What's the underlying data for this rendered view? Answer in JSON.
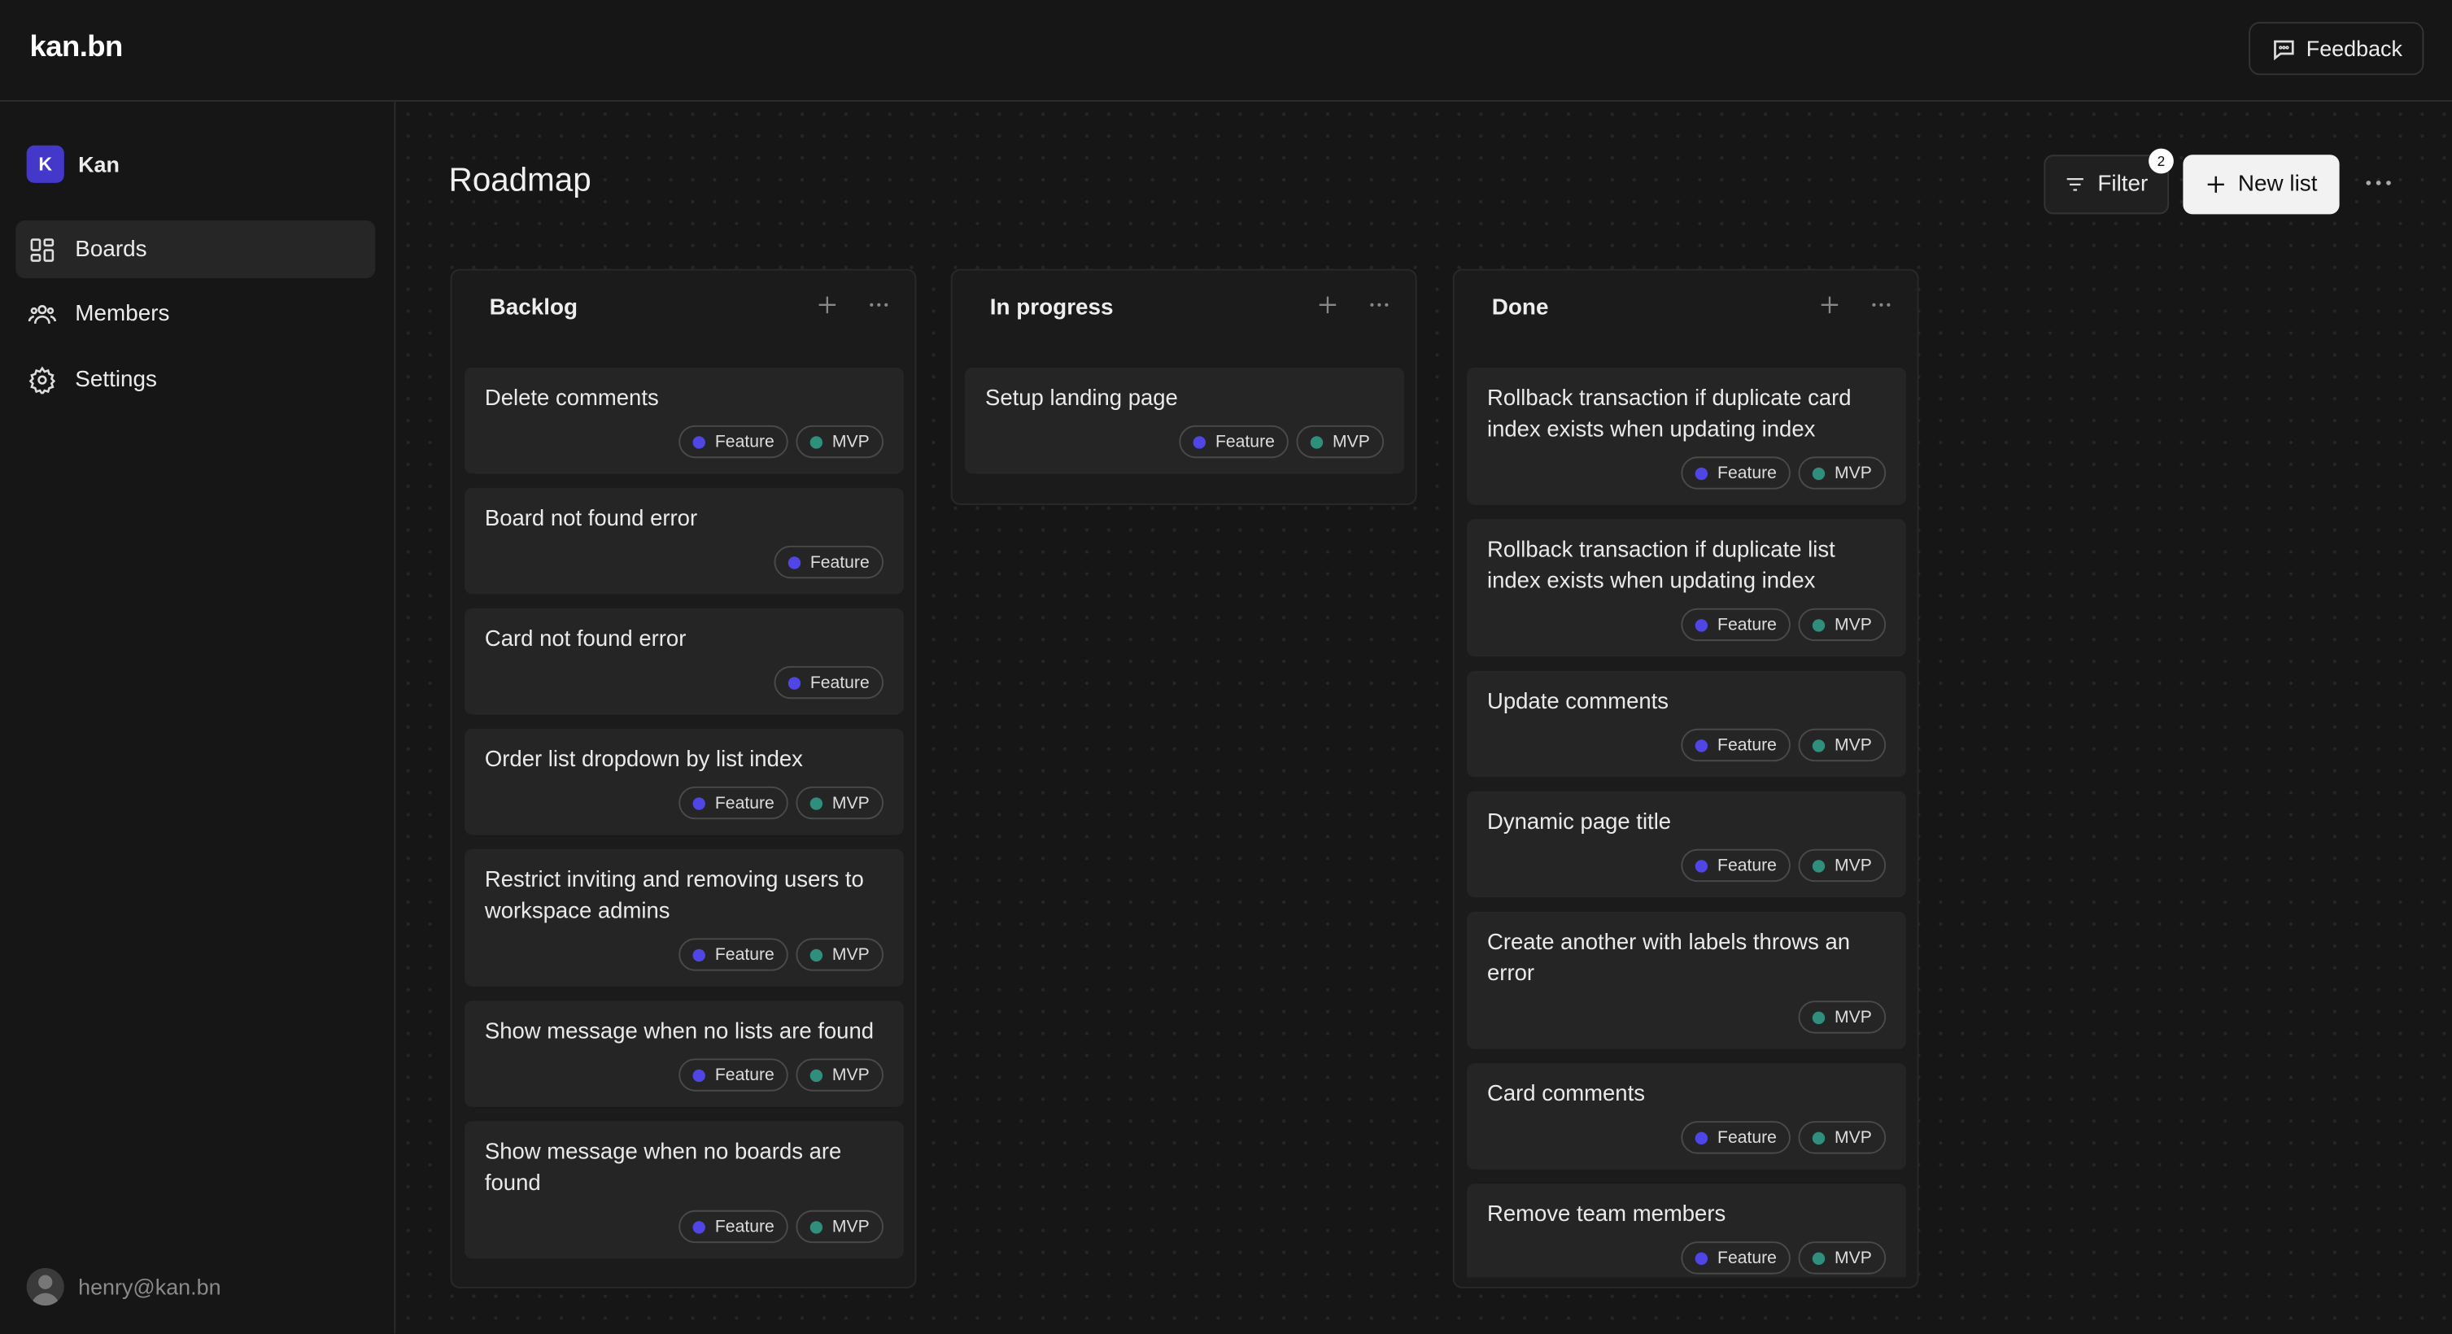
{
  "header": {
    "logo": "kan.bn",
    "feedback": "Feedback"
  },
  "sidebar": {
    "workspace": {
      "initial": "K",
      "name": "Kan"
    },
    "nav": [
      "Boards",
      "Members",
      "Settings"
    ],
    "user": "henry@kan.bn"
  },
  "board": {
    "title": "Roadmap",
    "filter": "Filter",
    "filter_count": "2",
    "new_list": "New list",
    "lists": [
      {
        "name": "Backlog",
        "cards": [
          {
            "title": "Delete comments",
            "labels": [
              {
                "text": "Feature",
                "color": "#4f46e5"
              },
              {
                "text": "MVP",
                "color": "#2f8f7c"
              }
            ]
          },
          {
            "title": "Board not found error",
            "labels": [
              {
                "text": "Feature",
                "color": "#4f46e5"
              }
            ]
          },
          {
            "title": "Card not found error",
            "labels": [
              {
                "text": "Feature",
                "color": "#4f46e5"
              }
            ]
          },
          {
            "title": "Order list dropdown by list index",
            "labels": [
              {
                "text": "Feature",
                "color": "#4f46e5"
              },
              {
                "text": "MVP",
                "color": "#2f8f7c"
              }
            ]
          },
          {
            "title": "Restrict inviting and removing users to workspace admins",
            "labels": [
              {
                "text": "Feature",
                "color": "#4f46e5"
              },
              {
                "text": "MVP",
                "color": "#2f8f7c"
              }
            ]
          },
          {
            "title": "Show message when no lists are found",
            "labels": [
              {
                "text": "Feature",
                "color": "#4f46e5"
              },
              {
                "text": "MVP",
                "color": "#2f8f7c"
              }
            ]
          },
          {
            "title": "Show message when no boards are found",
            "labels": [
              {
                "text": "Feature",
                "color": "#4f46e5"
              },
              {
                "text": "MVP",
                "color": "#2f8f7c"
              }
            ]
          }
        ]
      },
      {
        "name": "In progress",
        "cards": [
          {
            "title": "Setup landing page",
            "labels": [
              {
                "text": "Feature",
                "color": "#4f46e5"
              },
              {
                "text": "MVP",
                "color": "#2f8f7c"
              }
            ]
          }
        ]
      },
      {
        "name": "Done",
        "cards": [
          {
            "title": "Rollback transaction if duplicate card index exists when updating index",
            "labels": [
              {
                "text": "Feature",
                "color": "#4f46e5"
              },
              {
                "text": "MVP",
                "color": "#2f8f7c"
              }
            ]
          },
          {
            "title": "Rollback transaction if duplicate list index exists when updating index",
            "labels": [
              {
                "text": "Feature",
                "color": "#4f46e5"
              },
              {
                "text": "MVP",
                "color": "#2f8f7c"
              }
            ]
          },
          {
            "title": "Update comments",
            "labels": [
              {
                "text": "Feature",
                "color": "#4f46e5"
              },
              {
                "text": "MVP",
                "color": "#2f8f7c"
              }
            ]
          },
          {
            "title": "Dynamic page title",
            "labels": [
              {
                "text": "Feature",
                "color": "#4f46e5"
              },
              {
                "text": "MVP",
                "color": "#2f8f7c"
              }
            ]
          },
          {
            "title": "Create another with labels throws an error",
            "labels": [
              {
                "text": "MVP",
                "color": "#2f8f7c"
              }
            ]
          },
          {
            "title": "Card comments",
            "labels": [
              {
                "text": "Feature",
                "color": "#4f46e5"
              },
              {
                "text": "MVP",
                "color": "#2f8f7c"
              }
            ]
          },
          {
            "title": "Remove team members",
            "labels": [
              {
                "text": "Feature",
                "color": "#4f46e5"
              },
              {
                "text": "MVP",
                "color": "#2f8f7c"
              }
            ]
          }
        ]
      }
    ]
  }
}
